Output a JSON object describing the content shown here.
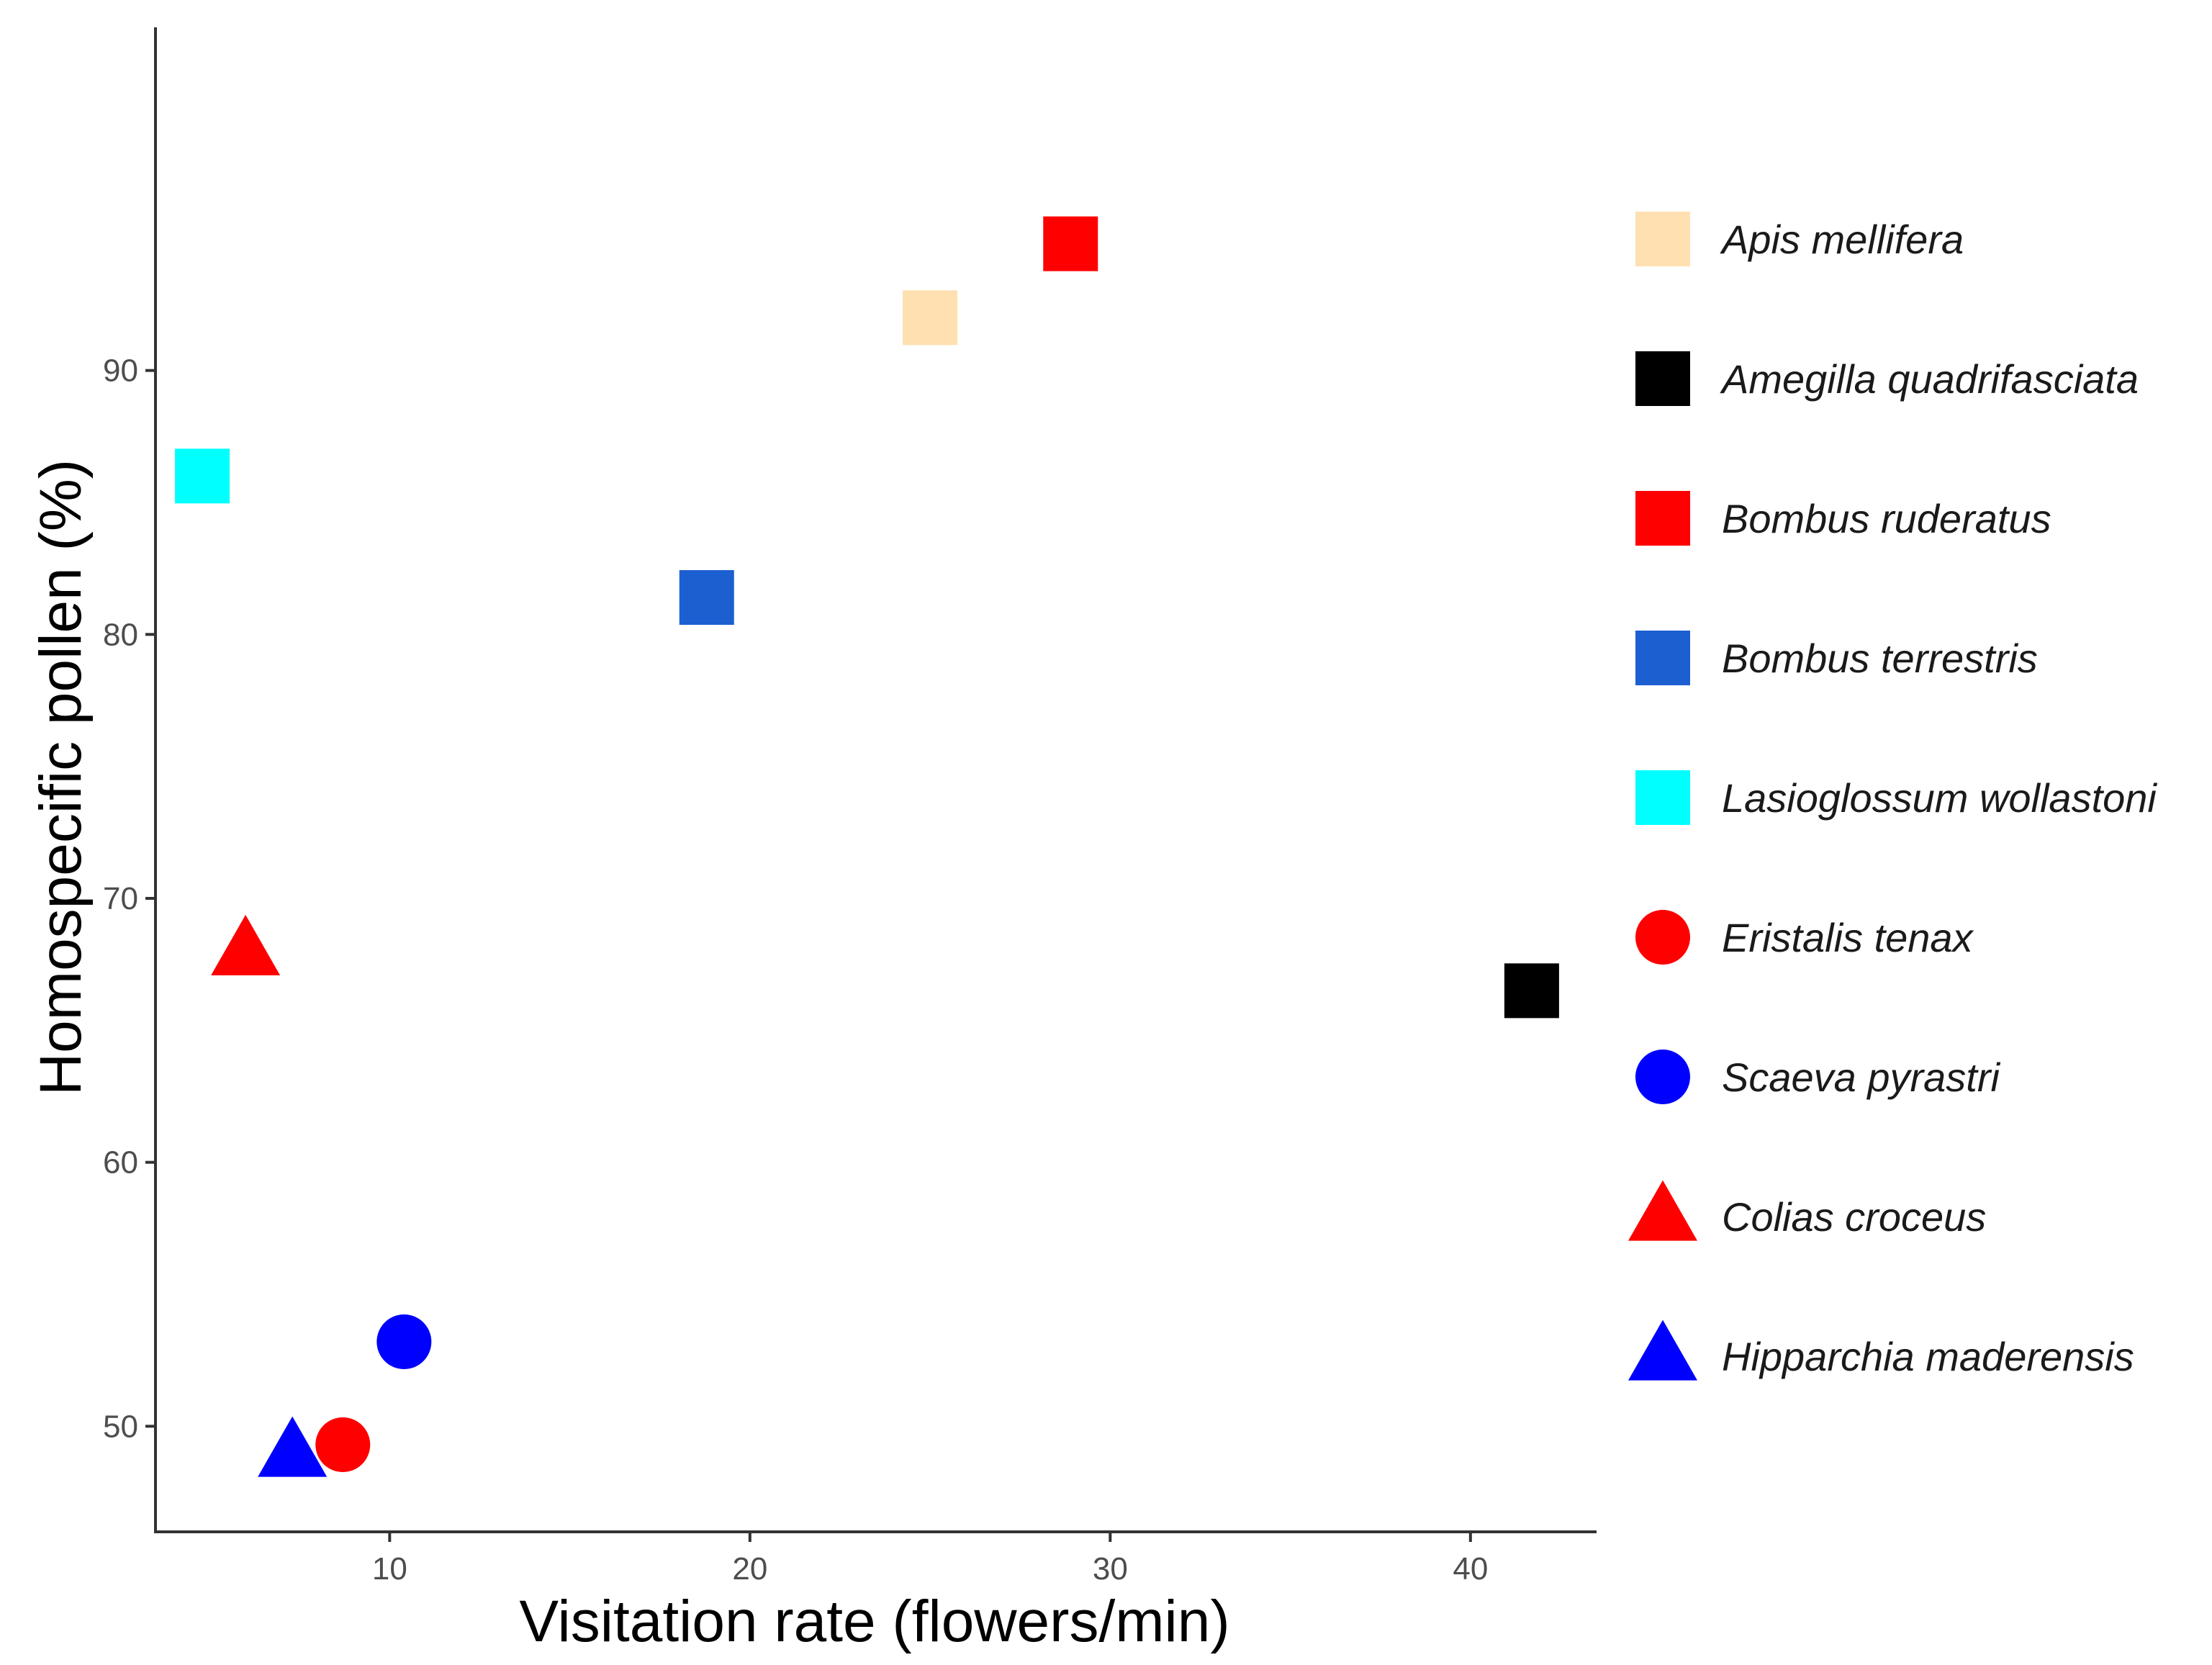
{
  "chart_data": {
    "type": "scatter",
    "title": "",
    "xlabel": "Visitation rate (flowers/min)",
    "ylabel": "Homospecific pollen (%)",
    "xlim": [
      3.5,
      43.5
    ],
    "ylim": [
      46,
      103
    ],
    "xticks": [
      10,
      20,
      30,
      40
    ],
    "yticks": [
      50,
      60,
      70,
      80,
      90
    ],
    "grid": false,
    "legend_position": "right",
    "series": [
      {
        "name": "Apis mellifera",
        "shape": "square",
        "color": "#FFE0B0",
        "x": 25.0,
        "y": 92.0
      },
      {
        "name": "Amegilla quadrifasciata",
        "shape": "square",
        "color": "#000000",
        "x": 41.7,
        "y": 66.5
      },
      {
        "name": "Bombus ruderatus",
        "shape": "square",
        "color": "#FF0000",
        "x": 28.9,
        "y": 94.8
      },
      {
        "name": "Bombus terrestris",
        "shape": "square",
        "color": "#1C5FD1",
        "x": 18.8,
        "y": 81.4
      },
      {
        "name": "Lasioglossum wollastoni",
        "shape": "square",
        "color": "#00FFFF",
        "x": 4.8,
        "y": 86.0
      },
      {
        "name": "Eristalis tenax",
        "shape": "circle",
        "color": "#FF0000",
        "x": 8.7,
        "y": 49.3
      },
      {
        "name": "Scaeva pyrastri",
        "shape": "circle",
        "color": "#0000FF",
        "x": 10.4,
        "y": 53.2
      },
      {
        "name": "Colias croceus",
        "shape": "triangle",
        "color": "#FF0000",
        "x": 6.0,
        "y": 68.0
      },
      {
        "name": "Hipparchia maderensis",
        "shape": "triangle",
        "color": "#0000FF",
        "x": 7.3,
        "y": 49.0
      }
    ]
  }
}
